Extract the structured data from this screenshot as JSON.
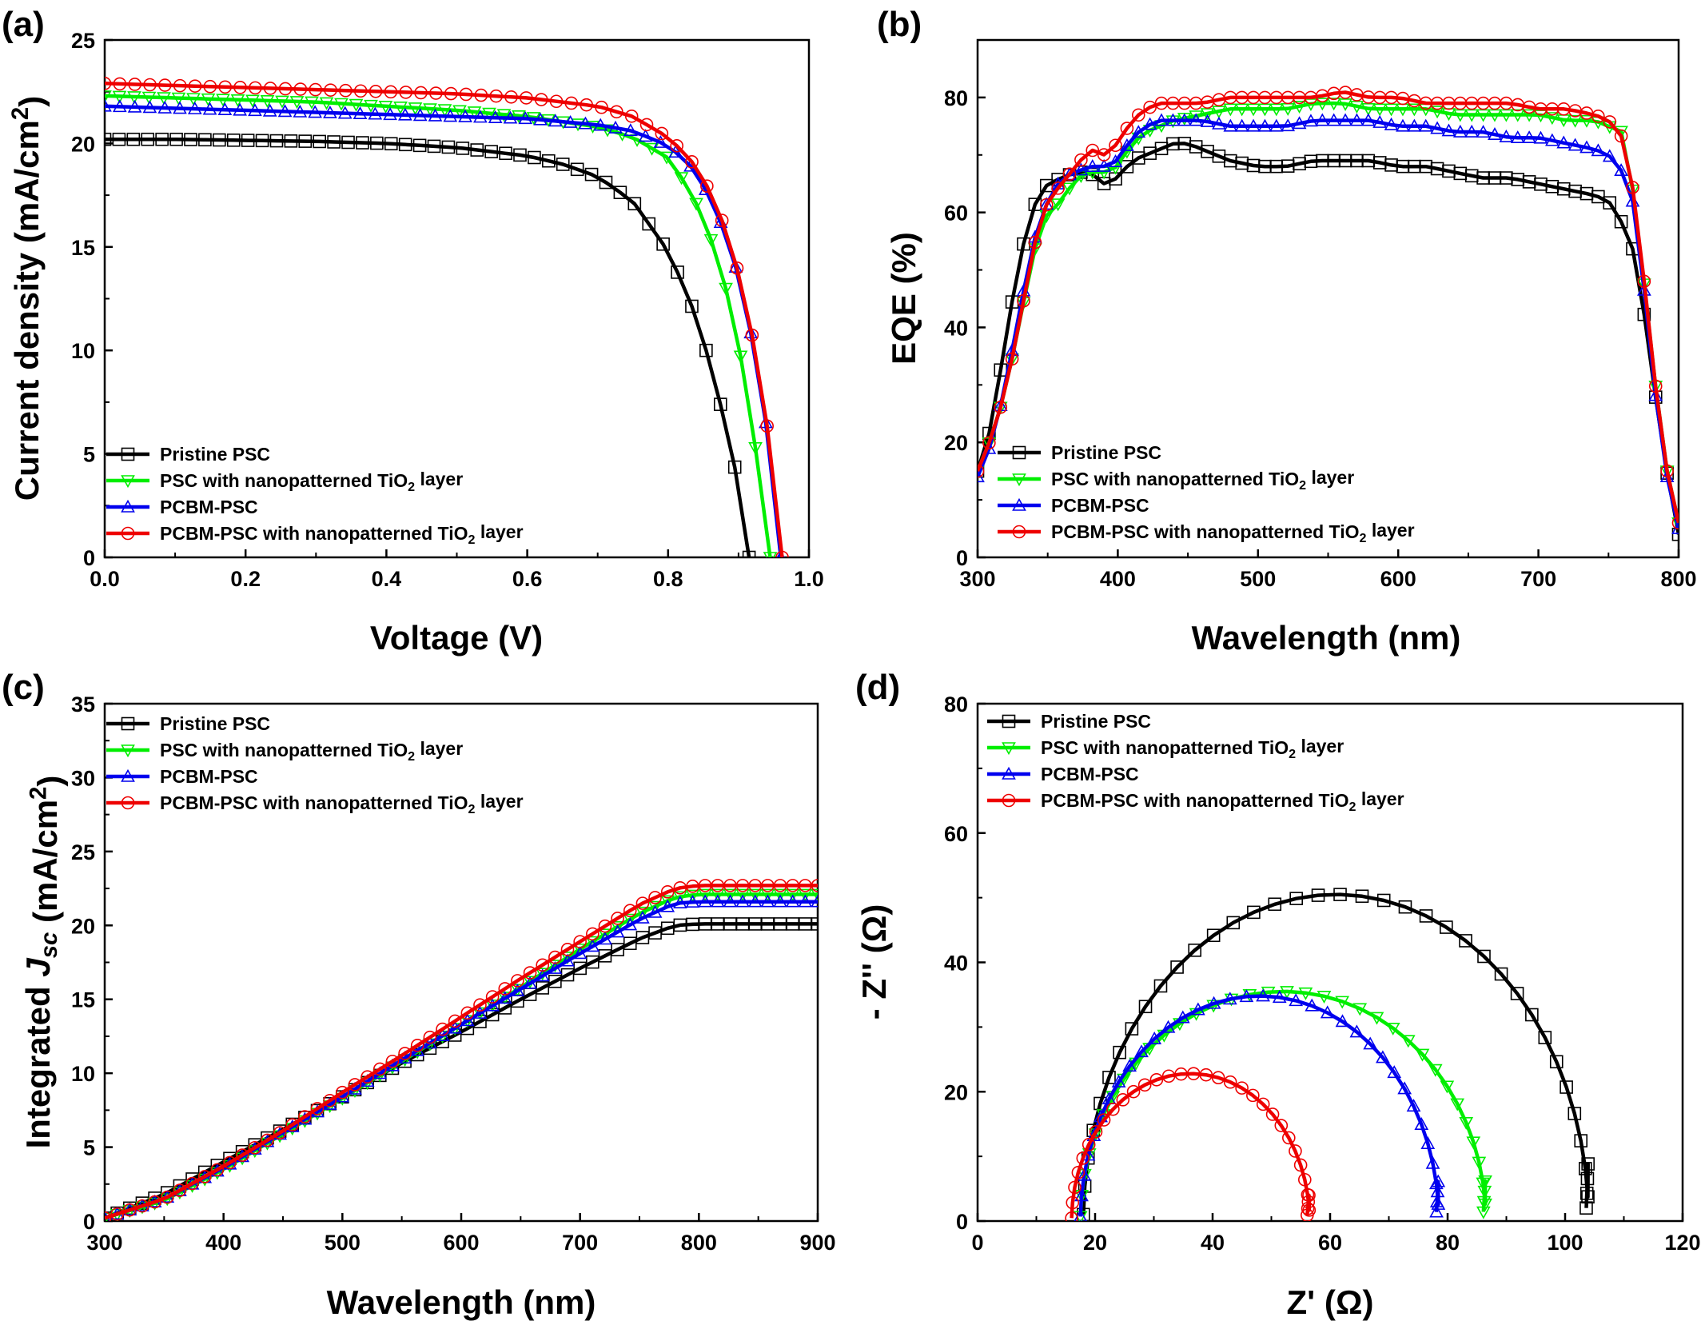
{
  "chart_data": [
    {
      "id": "a",
      "panel_label": "(a)",
      "type": "line",
      "xlabel": "Voltage (V)",
      "ylabel": "Current density (mA/cm²)",
      "xlim": [
        0,
        1.0
      ],
      "ylim": [
        0,
        25
      ],
      "xticks": [
        "0.0",
        "0.2",
        "0.4",
        "0.6",
        "0.8",
        "1.0"
      ],
      "yticks": [
        "0",
        "5",
        "10",
        "15",
        "20",
        "25"
      ],
      "grid": false,
      "legend_position": "bottom-left",
      "series": [
        {
          "name": "Pristine PSC",
          "color": "#000000",
          "marker": "square",
          "x": [
            0,
            0.1,
            0.2,
            0.3,
            0.4,
            0.5,
            0.6,
            0.65,
            0.7,
            0.75,
            0.8,
            0.83,
            0.85,
            0.87,
            0.89,
            0.9,
            0.91,
            0.915
          ],
          "y": [
            20.2,
            20.2,
            20.15,
            20.1,
            20.0,
            19.8,
            19.4,
            19.0,
            18.4,
            17.2,
            14.8,
            12.5,
            10.5,
            8.0,
            5.2,
            3.4,
            1.6,
            0.0
          ]
        },
        {
          "name": "PSC with nanopatterned TiO₂ layer",
          "color": "#00ee00",
          "marker": "triangle-down",
          "x": [
            0,
            0.1,
            0.2,
            0.3,
            0.4,
            0.5,
            0.6,
            0.7,
            0.75,
            0.8,
            0.83,
            0.85,
            0.87,
            0.89,
            0.91,
            0.92,
            0.93,
            0.94,
            0.945
          ],
          "y": [
            22.3,
            22.2,
            22.1,
            22.0,
            21.8,
            21.6,
            21.3,
            20.8,
            20.3,
            19.3,
            17.8,
            16.4,
            14.5,
            12.0,
            8.5,
            6.3,
            3.8,
            1.0,
            0.0
          ]
        },
        {
          "name": "PCBM-PSC",
          "color": "#0000ee",
          "marker": "triangle-up",
          "x": [
            0,
            0.1,
            0.2,
            0.3,
            0.4,
            0.5,
            0.6,
            0.7,
            0.75,
            0.8,
            0.83,
            0.85,
            0.87,
            0.89,
            0.91,
            0.93,
            0.94,
            0.95,
            0.96
          ],
          "y": [
            21.8,
            21.7,
            21.6,
            21.5,
            21.4,
            21.3,
            21.2,
            20.9,
            20.6,
            19.9,
            19.0,
            18.0,
            16.6,
            14.8,
            12.2,
            8.5,
            6.2,
            3.5,
            0.0
          ]
        },
        {
          "name": "PCBM-PSC with nanopatterned TiO₂ layer",
          "color": "#ee0000",
          "marker": "circle",
          "x": [
            0,
            0.1,
            0.2,
            0.3,
            0.4,
            0.5,
            0.6,
            0.7,
            0.75,
            0.8,
            0.83,
            0.85,
            0.87,
            0.89,
            0.91,
            0.93,
            0.94,
            0.95,
            0.962
          ],
          "y": [
            22.9,
            22.8,
            22.7,
            22.6,
            22.5,
            22.4,
            22.2,
            21.8,
            21.3,
            20.3,
            19.3,
            18.3,
            16.9,
            15.0,
            12.4,
            8.8,
            6.5,
            4.0,
            0.0
          ]
        }
      ]
    },
    {
      "id": "b",
      "panel_label": "(b)",
      "type": "line",
      "xlabel": "Wavelength (nm)",
      "ylabel": "EQE (%)",
      "xlim": [
        300,
        800
      ],
      "ylim": [
        0,
        90
      ],
      "xticks": [
        "300",
        "400",
        "500",
        "600",
        "700",
        "800"
      ],
      "yticks": [
        "0",
        "20",
        "40",
        "60",
        "80"
      ],
      "grid": false,
      "legend_position": "bottom-left",
      "series": [
        {
          "name": "Pristine PSC",
          "color": "#000000",
          "marker": "square",
          "x": [
            300,
            310,
            320,
            330,
            340,
            350,
            360,
            370,
            380,
            390,
            400,
            410,
            420,
            430,
            440,
            450,
            460,
            470,
            480,
            500,
            520,
            540,
            560,
            580,
            600,
            620,
            640,
            660,
            680,
            700,
            720,
            740,
            750,
            760,
            770,
            780,
            790,
            800
          ],
          "y": [
            15,
            23,
            38,
            52,
            61,
            65,
            66,
            67,
            67,
            65,
            66,
            69,
            70,
            71,
            72,
            72,
            71,
            70,
            69,
            68,
            68,
            69,
            69,
            69,
            68,
            68,
            67,
            66,
            66,
            65,
            64,
            63,
            62,
            58,
            52,
            34,
            17,
            4
          ]
        },
        {
          "name": "PSC with nanopatterned TiO₂ layer",
          "color": "#00ee00",
          "marker": "triangle-down",
          "x": [
            300,
            310,
            320,
            330,
            340,
            350,
            360,
            370,
            380,
            390,
            400,
            410,
            420,
            430,
            440,
            460,
            480,
            500,
            520,
            540,
            560,
            580,
            600,
            620,
            640,
            660,
            680,
            700,
            720,
            740,
            750,
            760,
            770,
            780,
            790,
            800
          ],
          "y": [
            15,
            21,
            29,
            41,
            53,
            60,
            62,
            66,
            67,
            67,
            68,
            72,
            74,
            75,
            76,
            77,
            78,
            78,
            78,
            79,
            79,
            78,
            78,
            78,
            77,
            77,
            77,
            77,
            76,
            76,
            75,
            74,
            60,
            37,
            17,
            6
          ]
        },
        {
          "name": "PCBM-PSC",
          "color": "#0000ee",
          "marker": "triangle-up",
          "x": [
            300,
            310,
            320,
            330,
            340,
            350,
            360,
            370,
            380,
            390,
            400,
            410,
            420,
            430,
            440,
            460,
            480,
            500,
            520,
            540,
            560,
            580,
            600,
            620,
            640,
            660,
            680,
            700,
            720,
            740,
            750,
            760,
            770,
            780,
            790,
            800
          ],
          "y": [
            14,
            20,
            30,
            43,
            55,
            62,
            66,
            67,
            68,
            68,
            69,
            73,
            75,
            76,
            76,
            76,
            75,
            75,
            75,
            76,
            76,
            76,
            75,
            75,
            74,
            74,
            73,
            73,
            72,
            71,
            70,
            67,
            60,
            35,
            16,
            5
          ]
        },
        {
          "name": "PCBM-PSC with nanopatterned TiO₂ layer",
          "color": "#ee0000",
          "marker": "circle",
          "x": [
            300,
            310,
            320,
            330,
            340,
            350,
            360,
            370,
            380,
            390,
            400,
            410,
            420,
            430,
            440,
            460,
            480,
            500,
            520,
            540,
            560,
            580,
            600,
            620,
            640,
            660,
            680,
            700,
            720,
            740,
            750,
            760,
            770,
            780,
            790,
            800
          ],
          "y": [
            15,
            21,
            29,
            41,
            54,
            62,
            65,
            68,
            71,
            70,
            72,
            76,
            78,
            79,
            79,
            79,
            80,
            80,
            80,
            80,
            81,
            80,
            80,
            79,
            79,
            79,
            79,
            78,
            78,
            77,
            76,
            73,
            61,
            37,
            17,
            6
          ]
        }
      ]
    },
    {
      "id": "c",
      "panel_label": "(c)",
      "type": "line",
      "xlabel": "Wavelength (nm)",
      "ylabel": "Integrated Jsc (mA/cm²)",
      "xlim": [
        300,
        900
      ],
      "ylim": [
        0,
        35
      ],
      "xticks": [
        "300",
        "400",
        "500",
        "600",
        "700",
        "800",
        "900"
      ],
      "yticks": [
        "0",
        "5",
        "10",
        "15",
        "20",
        "25",
        "30",
        "35"
      ],
      "grid": false,
      "legend_position": "top-left",
      "series": [
        {
          "name": "Pristine PSC",
          "color": "#000000",
          "marker": "square",
          "x": [
            300,
            350,
            400,
            450,
            500,
            550,
            600,
            650,
            700,
            750,
            780,
            800,
            850,
            900
          ],
          "y": [
            0.2,
            1.8,
            4.0,
            6.2,
            8.4,
            10.7,
            12.8,
            15.0,
            17.1,
            19.1,
            20.0,
            20.1,
            20.1,
            20.1
          ]
        },
        {
          "name": "PSC with nanopatterned TiO₂ layer",
          "color": "#00ee00",
          "marker": "triangle-down",
          "x": [
            300,
            350,
            400,
            450,
            500,
            550,
            600,
            650,
            700,
            750,
            780,
            800,
            850,
            900
          ],
          "y": [
            0.2,
            1.4,
            3.5,
            5.9,
            8.3,
            10.8,
            13.3,
            15.8,
            18.4,
            20.8,
            21.9,
            22.1,
            22.1,
            22.1
          ]
        },
        {
          "name": "PCBM-PSC",
          "color": "#0000ee",
          "marker": "triangle-up",
          "x": [
            300,
            350,
            400,
            450,
            500,
            550,
            600,
            650,
            700,
            750,
            780,
            800,
            850,
            900
          ],
          "y": [
            0.2,
            1.5,
            3.6,
            6.0,
            8.4,
            10.9,
            13.3,
            15.7,
            18.1,
            20.4,
            21.5,
            21.6,
            21.6,
            21.6
          ]
        },
        {
          "name": "PCBM-PSC with nanopatterned TiO₂ layer",
          "color": "#ee0000",
          "marker": "circle",
          "x": [
            300,
            350,
            400,
            450,
            500,
            550,
            600,
            650,
            700,
            750,
            780,
            800,
            850,
            900
          ],
          "y": [
            0.2,
            1.5,
            3.7,
            6.1,
            8.7,
            11.2,
            13.8,
            16.4,
            18.9,
            21.4,
            22.5,
            22.7,
            22.7,
            22.7
          ]
        }
      ]
    },
    {
      "id": "d",
      "panel_label": "(d)",
      "type": "scatter",
      "xlabel": "Z' (Ω)",
      "ylabel": "- Z'' (Ω)",
      "xlim": [
        0,
        120
      ],
      "ylim": [
        0,
        80
      ],
      "xticks": [
        "0",
        "20",
        "40",
        "60",
        "80",
        "100",
        "120"
      ],
      "yticks": [
        "0",
        "20",
        "40",
        "60",
        "80"
      ],
      "grid": false,
      "legend_position": "top-left",
      "series": [
        {
          "name": "Pristine PSC",
          "color": "#000000",
          "marker": "square",
          "arc": {
            "x_start": 18,
            "x_end": 104,
            "peak": 50.5,
            "points": 36
          }
        },
        {
          "name": "PSC with nanopatterned TiO₂ layer",
          "color": "#00ee00",
          "marker": "triangle-down",
          "arc": {
            "x_start": 17.5,
            "x_end": 86.5,
            "peak": 35.5,
            "points": 34
          }
        },
        {
          "name": "PCBM-PSC",
          "color": "#0000ee",
          "marker": "triangle-up",
          "arc": {
            "x_start": 17.5,
            "x_end": 78.5,
            "peak": 34.8,
            "points": 34
          }
        },
        {
          "name": "PCBM-PSC with nanopatterned TiO₂ layer",
          "color": "#ee0000",
          "marker": "circle",
          "arc": {
            "x_start": 16,
            "x_end": 56.5,
            "peak": 22.8,
            "points": 30
          }
        }
      ]
    }
  ]
}
